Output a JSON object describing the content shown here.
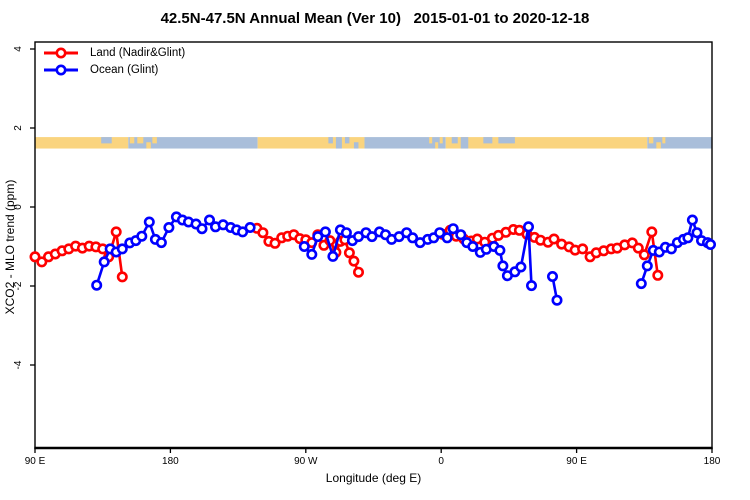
{
  "title": "42.5N-47.5N Annual Mean (Ver 10)   2015-01-01 to 2020-12-18",
  "chart_data": {
    "type": "line",
    "title": "42.5N-47.5N Annual Mean (Ver 10)   2015-01-01 to 2020-12-18",
    "xlabel": "Longitude (deg E)",
    "ylabel": "XCO2 - MLO trend (ppm)",
    "x_axis_note": "x values are degrees east of 90E; axis wraps 90E>180>90W>0>90E>180 spanning 450 deg",
    "x_range_deg": [
      0,
      450
    ],
    "y_tick_range": [
      -4,
      4
    ],
    "grid": "off",
    "legend_position": "top-left",
    "x_ticks": [
      {
        "deg": 0,
        "label": "90 E"
      },
      {
        "deg": 90,
        "label": "180"
      },
      {
        "deg": 180,
        "label": "90 W"
      },
      {
        "deg": 270,
        "label": "0"
      },
      {
        "deg": 360,
        "label": "90 E"
      },
      {
        "deg": 450,
        "label": "180"
      }
    ],
    "y_ticks": [
      {
        "value": -4,
        "label": "-4"
      },
      {
        "value": -2,
        "label": "-2"
      },
      {
        "value": 0,
        "label": "0"
      },
      {
        "value": 2,
        "label": "2"
      },
      {
        "value": 4,
        "label": "4"
      }
    ],
    "series": [
      {
        "name": "Land (Nadir&Glint)",
        "color": "#ff0000",
        "marker": "open-circle",
        "segments": [
          [
            [
              0,
              -1.26
            ],
            [
              4.5,
              -1.39
            ],
            [
              9,
              -1.26
            ],
            [
              13.5,
              -1.19
            ],
            [
              18,
              -1.11
            ],
            [
              22.5,
              -1.06
            ],
            [
              27,
              -0.99
            ],
            [
              31.5,
              -1.04
            ],
            [
              36,
              -0.99
            ],
            [
              40.5,
              -1.01
            ],
            [
              45,
              -1.06
            ],
            [
              49,
              -1.26
            ],
            [
              54,
              -0.63
            ],
            [
              58,
              -1.77
            ]
          ],
          [
            [
              147.5,
              -0.54
            ],
            [
              151.5,
              -0.65
            ],
            [
              155.5,
              -0.87
            ],
            [
              159.5,
              -0.92
            ],
            [
              164,
              -0.78
            ],
            [
              168,
              -0.74
            ],
            [
              172,
              -0.7
            ],
            [
              176,
              -0.8
            ],
            [
              180,
              -0.83
            ],
            [
              184,
              -0.9
            ],
            [
              188,
              -0.7
            ],
            [
              192,
              -0.97
            ],
            [
              196,
              -0.85
            ],
            [
              200,
              -1.15
            ],
            [
              203,
              -0.87
            ],
            [
              206,
              -0.83
            ],
            [
              209,
              -1.16
            ],
            [
              212,
              -1.37
            ],
            [
              215,
              -1.65
            ]
          ],
          [
            [
              271,
              -0.69
            ],
            [
              276,
              -0.59
            ],
            [
              280,
              -0.74
            ],
            [
              285,
              -0.81
            ],
            [
              290,
              -0.86
            ],
            [
              294,
              -0.81
            ],
            [
              299,
              -0.89
            ],
            [
              304,
              -0.79
            ],
            [
              308,
              -0.72
            ],
            [
              313,
              -0.64
            ],
            [
              318,
              -0.57
            ],
            [
              322,
              -0.59
            ],
            [
              327,
              -0.69
            ],
            [
              332,
              -0.77
            ],
            [
              336,
              -0.84
            ],
            [
              341,
              -0.89
            ],
            [
              345,
              -0.81
            ],
            [
              350,
              -0.94
            ],
            [
              355,
              -1.01
            ],
            [
              359,
              -1.09
            ],
            [
              364,
              -1.06
            ],
            [
              369,
              -1.26
            ],
            [
              373,
              -1.16
            ],
            [
              378,
              -1.11
            ],
            [
              383,
              -1.06
            ],
            [
              387,
              -1.04
            ],
            [
              392,
              -0.96
            ],
            [
              397,
              -0.91
            ],
            [
              401,
              -1.04
            ],
            [
              405,
              -1.21
            ],
            [
              410,
              -0.63
            ],
            [
              414,
              -1.73
            ]
          ]
        ]
      },
      {
        "name": "Ocean (Glint)",
        "color": "#0000ff",
        "marker": "open-circle",
        "segments": [
          [
            [
              41,
              -1.98
            ],
            [
              46,
              -1.39
            ],
            [
              50,
              -1.06
            ],
            [
              54,
              -1.14
            ],
            [
              58,
              -1.06
            ],
            [
              63,
              -0.91
            ],
            [
              67,
              -0.85
            ],
            [
              71,
              -0.74
            ],
            [
              76,
              -0.38
            ],
            [
              80,
              -0.82
            ],
            [
              84,
              -0.9
            ],
            [
              89,
              -0.52
            ],
            [
              94,
              -0.25
            ],
            [
              98,
              -0.33
            ],
            [
              102,
              -0.38
            ],
            [
              107,
              -0.43
            ],
            [
              111,
              -0.55
            ],
            [
              116,
              -0.33
            ],
            [
              120,
              -0.5
            ],
            [
              125,
              -0.45
            ],
            [
              130,
              -0.52
            ],
            [
              134,
              -0.58
            ],
            [
              138,
              -0.63
            ],
            [
              143,
              -0.52
            ]
          ],
          [
            [
              179,
              -1.0
            ],
            [
              184,
              -1.2
            ],
            [
              188,
              -0.75
            ],
            [
              193,
              -0.63
            ],
            [
              198,
              -1.25
            ],
            [
              203,
              -0.58
            ],
            [
              207,
              -0.65
            ],
            [
              211,
              -0.85
            ],
            [
              215,
              -0.75
            ],
            [
              220,
              -0.65
            ],
            [
              224,
              -0.75
            ],
            [
              229,
              -0.63
            ],
            [
              233,
              -0.7
            ],
            [
              237,
              -0.82
            ],
            [
              242,
              -0.75
            ],
            [
              247,
              -0.65
            ],
            [
              251,
              -0.78
            ],
            [
              256,
              -0.9
            ],
            [
              261,
              -0.82
            ],
            [
              265,
              -0.78
            ],
            [
              269,
              -0.65
            ],
            [
              274,
              -0.78
            ],
            [
              278,
              -0.55
            ],
            [
              283,
              -0.7
            ],
            [
              287,
              -0.9
            ],
            [
              291,
              -1.0
            ],
            [
              296,
              -1.15
            ],
            [
              300,
              -1.07
            ],
            [
              305,
              -1.0
            ],
            [
              309,
              -1.1
            ],
            [
              311,
              -1.49
            ],
            [
              314,
              -1.74
            ],
            [
              319,
              -1.64
            ],
            [
              323,
              -1.52
            ],
            [
              328,
              -0.5
            ],
            [
              330,
              -1.99
            ]
          ],
          [
            [
              344,
              -1.76
            ],
            [
              347,
              -2.36
            ]
          ],
          [
            [
              403,
              -1.94
            ],
            [
              407,
              -1.49
            ],
            [
              411,
              -1.1
            ],
            [
              415,
              -1.14
            ],
            [
              419,
              -1.02
            ],
            [
              423,
              -1.06
            ],
            [
              427,
              -0.9
            ],
            [
              431,
              -0.82
            ],
            [
              434,
              -0.78
            ],
            [
              437,
              -0.33
            ],
            [
              440,
              -0.65
            ],
            [
              443,
              -0.85
            ],
            [
              447,
              -0.9
            ],
            [
              449,
              -0.95
            ]
          ]
        ]
      }
    ],
    "map_strip": {
      "description": "world coastline band for 42.5N-47.5N drawn across plot",
      "land_color": "#fad47f",
      "ocean_color": "#a9beda",
      "band_ppm": [
        1.48,
        1.77
      ],
      "segments": [
        {
          "from": 0,
          "to": 62,
          "type": "land"
        },
        {
          "from": 62,
          "to": 148,
          "type": "ocean"
        },
        {
          "from": 148,
          "to": 219,
          "type": "land"
        },
        {
          "from": 219,
          "to": 273,
          "type": "ocean"
        },
        {
          "from": 273,
          "to": 407,
          "type": "land"
        },
        {
          "from": 407,
          "to": 450,
          "type": "ocean"
        }
      ],
      "patches": [
        {
          "from": 44,
          "to": 51,
          "type": "ocean",
          "vpos": "top"
        },
        {
          "from": 63,
          "to": 66,
          "type": "land",
          "vpos": "top"
        },
        {
          "from": 68,
          "to": 72,
          "type": "land",
          "vpos": "top"
        },
        {
          "from": 74,
          "to": 77,
          "type": "land",
          "vpos": "bottom"
        },
        {
          "from": 78,
          "to": 81,
          "type": "land",
          "vpos": "top"
        },
        {
          "from": 195,
          "to": 198,
          "type": "ocean",
          "vpos": "top"
        },
        {
          "from": 200,
          "to": 204,
          "type": "ocean",
          "vpos": "mid"
        },
        {
          "from": 206,
          "to": 209,
          "type": "ocean",
          "vpos": "top"
        },
        {
          "from": 212,
          "to": 215,
          "type": "ocean",
          "vpos": "bottom"
        },
        {
          "from": 262,
          "to": 264,
          "type": "land",
          "vpos": "top"
        },
        {
          "from": 266,
          "to": 268,
          "type": "land",
          "vpos": "bottom"
        },
        {
          "from": 269,
          "to": 271,
          "type": "land",
          "vpos": "top"
        },
        {
          "from": 277,
          "to": 281,
          "type": "ocean",
          "vpos": "top"
        },
        {
          "from": 283,
          "to": 288,
          "type": "ocean",
          "vpos": "mid"
        },
        {
          "from": 298,
          "to": 304,
          "type": "ocean",
          "vpos": "top"
        },
        {
          "from": 308,
          "to": 319,
          "type": "ocean",
          "vpos": "top"
        },
        {
          "from": 408,
          "to": 411,
          "type": "land",
          "vpos": "top"
        },
        {
          "from": 413,
          "to": 416,
          "type": "land",
          "vpos": "bottom"
        },
        {
          "from": 417,
          "to": 419,
          "type": "land",
          "vpos": "top"
        }
      ]
    }
  }
}
